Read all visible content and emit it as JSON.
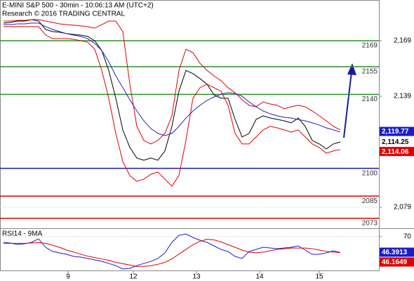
{
  "chart_data": [
    {
      "type": "line",
      "title": "E-MINI S&P 500 - 30min - 10:06:13 AM (UTC+2)",
      "subtitle": "Research © 2016 TRADING CENTRAL",
      "ylim": [
        2067.6,
        2191.0
      ],
      "yticks": [
        {
          "value": 2169,
          "label": "2,169"
        },
        {
          "value": 2139,
          "label": "2,139"
        },
        {
          "value": 2079,
          "label": "2,079"
        }
      ],
      "grid": true,
      "xticks": [
        {
          "value": 9.2,
          "label": "9"
        },
        {
          "value": 18.5,
          "label": "12"
        },
        {
          "value": 27.5,
          "label": "13"
        },
        {
          "value": 36.5,
          "label": "14"
        },
        {
          "value": 45,
          "label": "15"
        }
      ],
      "levels": [
        {
          "value": 2169,
          "color": "#2f8f2f"
        },
        {
          "value": 2155,
          "color": "#2f8f2f"
        },
        {
          "value": 2140,
          "color": "#2f8f2f"
        },
        {
          "value": 2100,
          "color": "#1a1aa0"
        },
        {
          "value": 2085,
          "color": "#e00000"
        },
        {
          "value": 2073,
          "color": "#e00000"
        }
      ],
      "value_tags": [
        {
          "value": 2119.77,
          "label": "2,119.77",
          "color": "#1a1ad0"
        },
        {
          "value": 2114.25,
          "label": "2,114.25",
          "color": "#ffffff"
        },
        {
          "value": 2114.06,
          "label": "2,114.06",
          "color": "#e00000"
        }
      ],
      "series": [
        {
          "color": "#000000",
          "values": [
            2178.5,
            2178.9,
            2179.6,
            2179.6,
            2180.4,
            2179.6,
            2175.1,
            2173.9,
            2173.6,
            2172.8,
            2172.4,
            2172.0,
            2171.3,
            2169.0,
            2163.7,
            2152.9,
            2137.9,
            2120.8,
            2111.3,
            2105.6,
            2104.4,
            2105.6,
            2104.4,
            2109.4,
            2122.7,
            2141.7,
            2152.9,
            2151.2,
            2148.5,
            2145.5,
            2139.8,
            2137.9,
            2137.9,
            2126.5,
            2117.0,
            2118.9,
            2126.5,
            2128.4,
            2127.2,
            2126.5,
            2125.7,
            2124.6,
            2127.2,
            2122.7,
            2115.1,
            2113.2,
            2110.5,
            2113.2,
            2114.3
          ]
        },
        {
          "color": "#e00000",
          "values": [
            2179.6,
            2179.6,
            2180.0,
            2180.0,
            2180.4,
            2180.4,
            2179.6,
            2178.9,
            2178.1,
            2177.7,
            2177.4,
            2177.0,
            2176.6,
            2175.8,
            2177.7,
            2179.6,
            2179.6,
            2173.9,
            2145.5,
            2122.7,
            2115.1,
            2113.2,
            2115.1,
            2118.9,
            2128.4,
            2153.0,
            2164.4,
            2162.5,
            2156.8,
            2153.0,
            2150.0,
            2147.4,
            2143.6,
            2140.9,
            2137.1,
            2134.1,
            2133.3,
            2135.9,
            2134.8,
            2134.1,
            2132.2,
            2133.3,
            2134.1,
            2133.3,
            2131.0,
            2128.4,
            2125.7,
            2122.7,
            2120.8
          ]
        },
        {
          "color": "#e00000",
          "values": [
            2176.6,
            2176.6,
            2176.6,
            2176.6,
            2176.6,
            2176.6,
            2172.1,
            2170.1,
            2170.1,
            2170.1,
            2169.8,
            2169.0,
            2168.2,
            2164.4,
            2153.0,
            2137.9,
            2118.9,
            2103.7,
            2096.1,
            2093.0,
            2094.2,
            2096.8,
            2098.0,
            2094.2,
            2090.4,
            2096.1,
            2115.1,
            2137.9,
            2143.6,
            2145.5,
            2143.6,
            2141.7,
            2134.1,
            2118.9,
            2113.2,
            2113.2,
            2117.0,
            2120.8,
            2122.7,
            2121.9,
            2120.8,
            2119.6,
            2120.8,
            2117.0,
            2113.2,
            2111.3,
            2108.2,
            2109.4,
            2110.1
          ]
        },
        {
          "color": "#2323c8",
          "values": [
            2177.7,
            2177.7,
            2178.1,
            2178.1,
            2178.5,
            2178.5,
            2176.6,
            2175.1,
            2173.9,
            2172.8,
            2172.0,
            2171.3,
            2170.1,
            2167.5,
            2163.7,
            2157.6,
            2150.0,
            2143.6,
            2137.1,
            2131.0,
            2125.7,
            2121.5,
            2118.9,
            2117.7,
            2118.9,
            2122.7,
            2127.2,
            2131.0,
            2134.1,
            2136.7,
            2138.6,
            2140.1,
            2140.9,
            2140.5,
            2139.0,
            2135.9,
            2133.3,
            2131.0,
            2129.5,
            2128.4,
            2127.6,
            2127.2,
            2126.4,
            2125.7,
            2124.6,
            2123.4,
            2121.9,
            2120.8,
            2119.6
          ]
        }
      ]
    },
    {
      "type": "line",
      "title": "RSI14 - 9MA",
      "ylim": [
        20,
        80
      ],
      "yticks": [
        70
      ],
      "grid": true,
      "value_tags": [
        {
          "value": 46.3913,
          "label": "46.3913",
          "color": "#1a1ad0"
        },
        {
          "value": 46.1649,
          "label": "46.1649",
          "color": "#e00000"
        }
      ],
      "series": [
        {
          "color": "#1a1ad0",
          "values": [
            61.4,
            60.3,
            58.3,
            59.3,
            61.4,
            66.6,
            54.1,
            47.9,
            45.9,
            43.8,
            40.7,
            39.7,
            37.6,
            35.5,
            33.4,
            30.3,
            27.2,
            22.1,
            23.1,
            27.2,
            30.3,
            33.4,
            37.6,
            45.9,
            61.4,
            71.7,
            73.8,
            68.6,
            64.5,
            61.4,
            56.2,
            51.0,
            47.9,
            40.7,
            37.6,
            47.9,
            51.0,
            54.1,
            53.1,
            52.1,
            53.1,
            54.1,
            56.2,
            50.0,
            43.8,
            43.8,
            45.9,
            49.0,
            46.4
          ]
        },
        {
          "color": "#e00000",
          "values": [
            60,
            60,
            60,
            60,
            60.5,
            61,
            60,
            57,
            54,
            50,
            47,
            44,
            41,
            39,
            37,
            35,
            32,
            30,
            28,
            26,
            26,
            27,
            29,
            32,
            37,
            44,
            51,
            58,
            63,
            66,
            65,
            62,
            58,
            54,
            50,
            47,
            46,
            47,
            49,
            51,
            52,
            53,
            53,
            53,
            52,
            50,
            48,
            47,
            46.2
          ]
        }
      ]
    }
  ]
}
